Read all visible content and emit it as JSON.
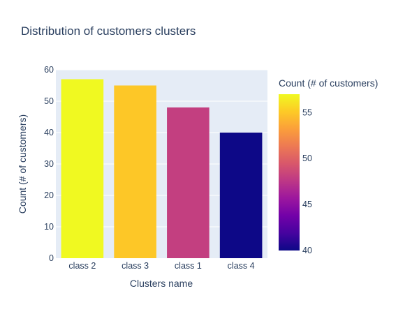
{
  "chart_data": {
    "type": "bar",
    "title": "Distribution of customers clusters",
    "xlabel": "Clusters name",
    "ylabel": "Count (# of customers)",
    "categories": [
      "class 2",
      "class 3",
      "class 1",
      "class 4"
    ],
    "values": [
      57,
      55,
      48,
      40
    ],
    "ylim": [
      0,
      60
    ],
    "yticks": [
      0,
      10,
      20,
      30,
      40,
      50,
      60
    ],
    "grid": true,
    "plot_background": "#e5ecf6",
    "colorbar": {
      "title": "Count (# of customers)",
      "range": [
        40,
        57
      ],
      "ticks": [
        40,
        45,
        50,
        55
      ],
      "colorscale": "plasma",
      "stops": [
        "#0d0887",
        "#46039f",
        "#7201a8",
        "#9c179e",
        "#bd3786",
        "#d8576b",
        "#ed7953",
        "#fb9f3a",
        "#fdca26",
        "#f0f921"
      ]
    }
  }
}
